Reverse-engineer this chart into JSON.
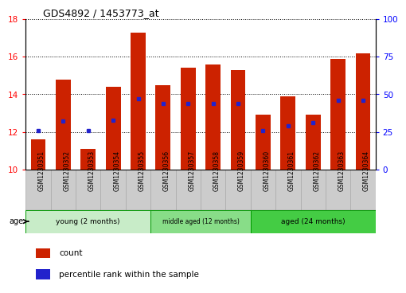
{
  "title": "GDS4892 / 1453773_at",
  "samples": [
    "GSM1230351",
    "GSM1230352",
    "GSM1230353",
    "GSM1230354",
    "GSM1230355",
    "GSM1230356",
    "GSM1230357",
    "GSM1230358",
    "GSM1230359",
    "GSM1230360",
    "GSM1230361",
    "GSM1230362",
    "GSM1230363",
    "GSM1230364"
  ],
  "counts": [
    11.6,
    14.8,
    11.1,
    14.4,
    17.3,
    14.5,
    15.4,
    15.6,
    15.3,
    12.9,
    13.9,
    12.9,
    15.9,
    16.2
  ],
  "percentile_ranks": [
    26,
    32,
    26,
    33,
    47,
    44,
    44,
    44,
    44,
    26,
    29,
    31,
    46,
    46
  ],
  "bar_bottom": 10,
  "ylim_left": [
    10,
    18
  ],
  "ylim_right": [
    0,
    100
  ],
  "yticks_left": [
    10,
    12,
    14,
    16,
    18
  ],
  "yticks_right": [
    0,
    25,
    50,
    75,
    100
  ],
  "bar_color": "#cc2200",
  "percentile_color": "#2222cc",
  "groups": [
    {
      "label": "young (2 months)",
      "start": 0,
      "end": 4,
      "color": "#c8ecc8"
    },
    {
      "label": "middle aged (12 months)",
      "start": 5,
      "end": 8,
      "color": "#88dd88"
    },
    {
      "label": "aged (24 months)",
      "start": 9,
      "end": 13,
      "color": "#44cc44"
    }
  ],
  "group_border_color": "#009900",
  "age_label": "age",
  "legend_count_label": "count",
  "legend_pct_label": "percentile rank within the sample",
  "label_box_color": "#cccccc",
  "label_box_edge": "#aaaaaa"
}
